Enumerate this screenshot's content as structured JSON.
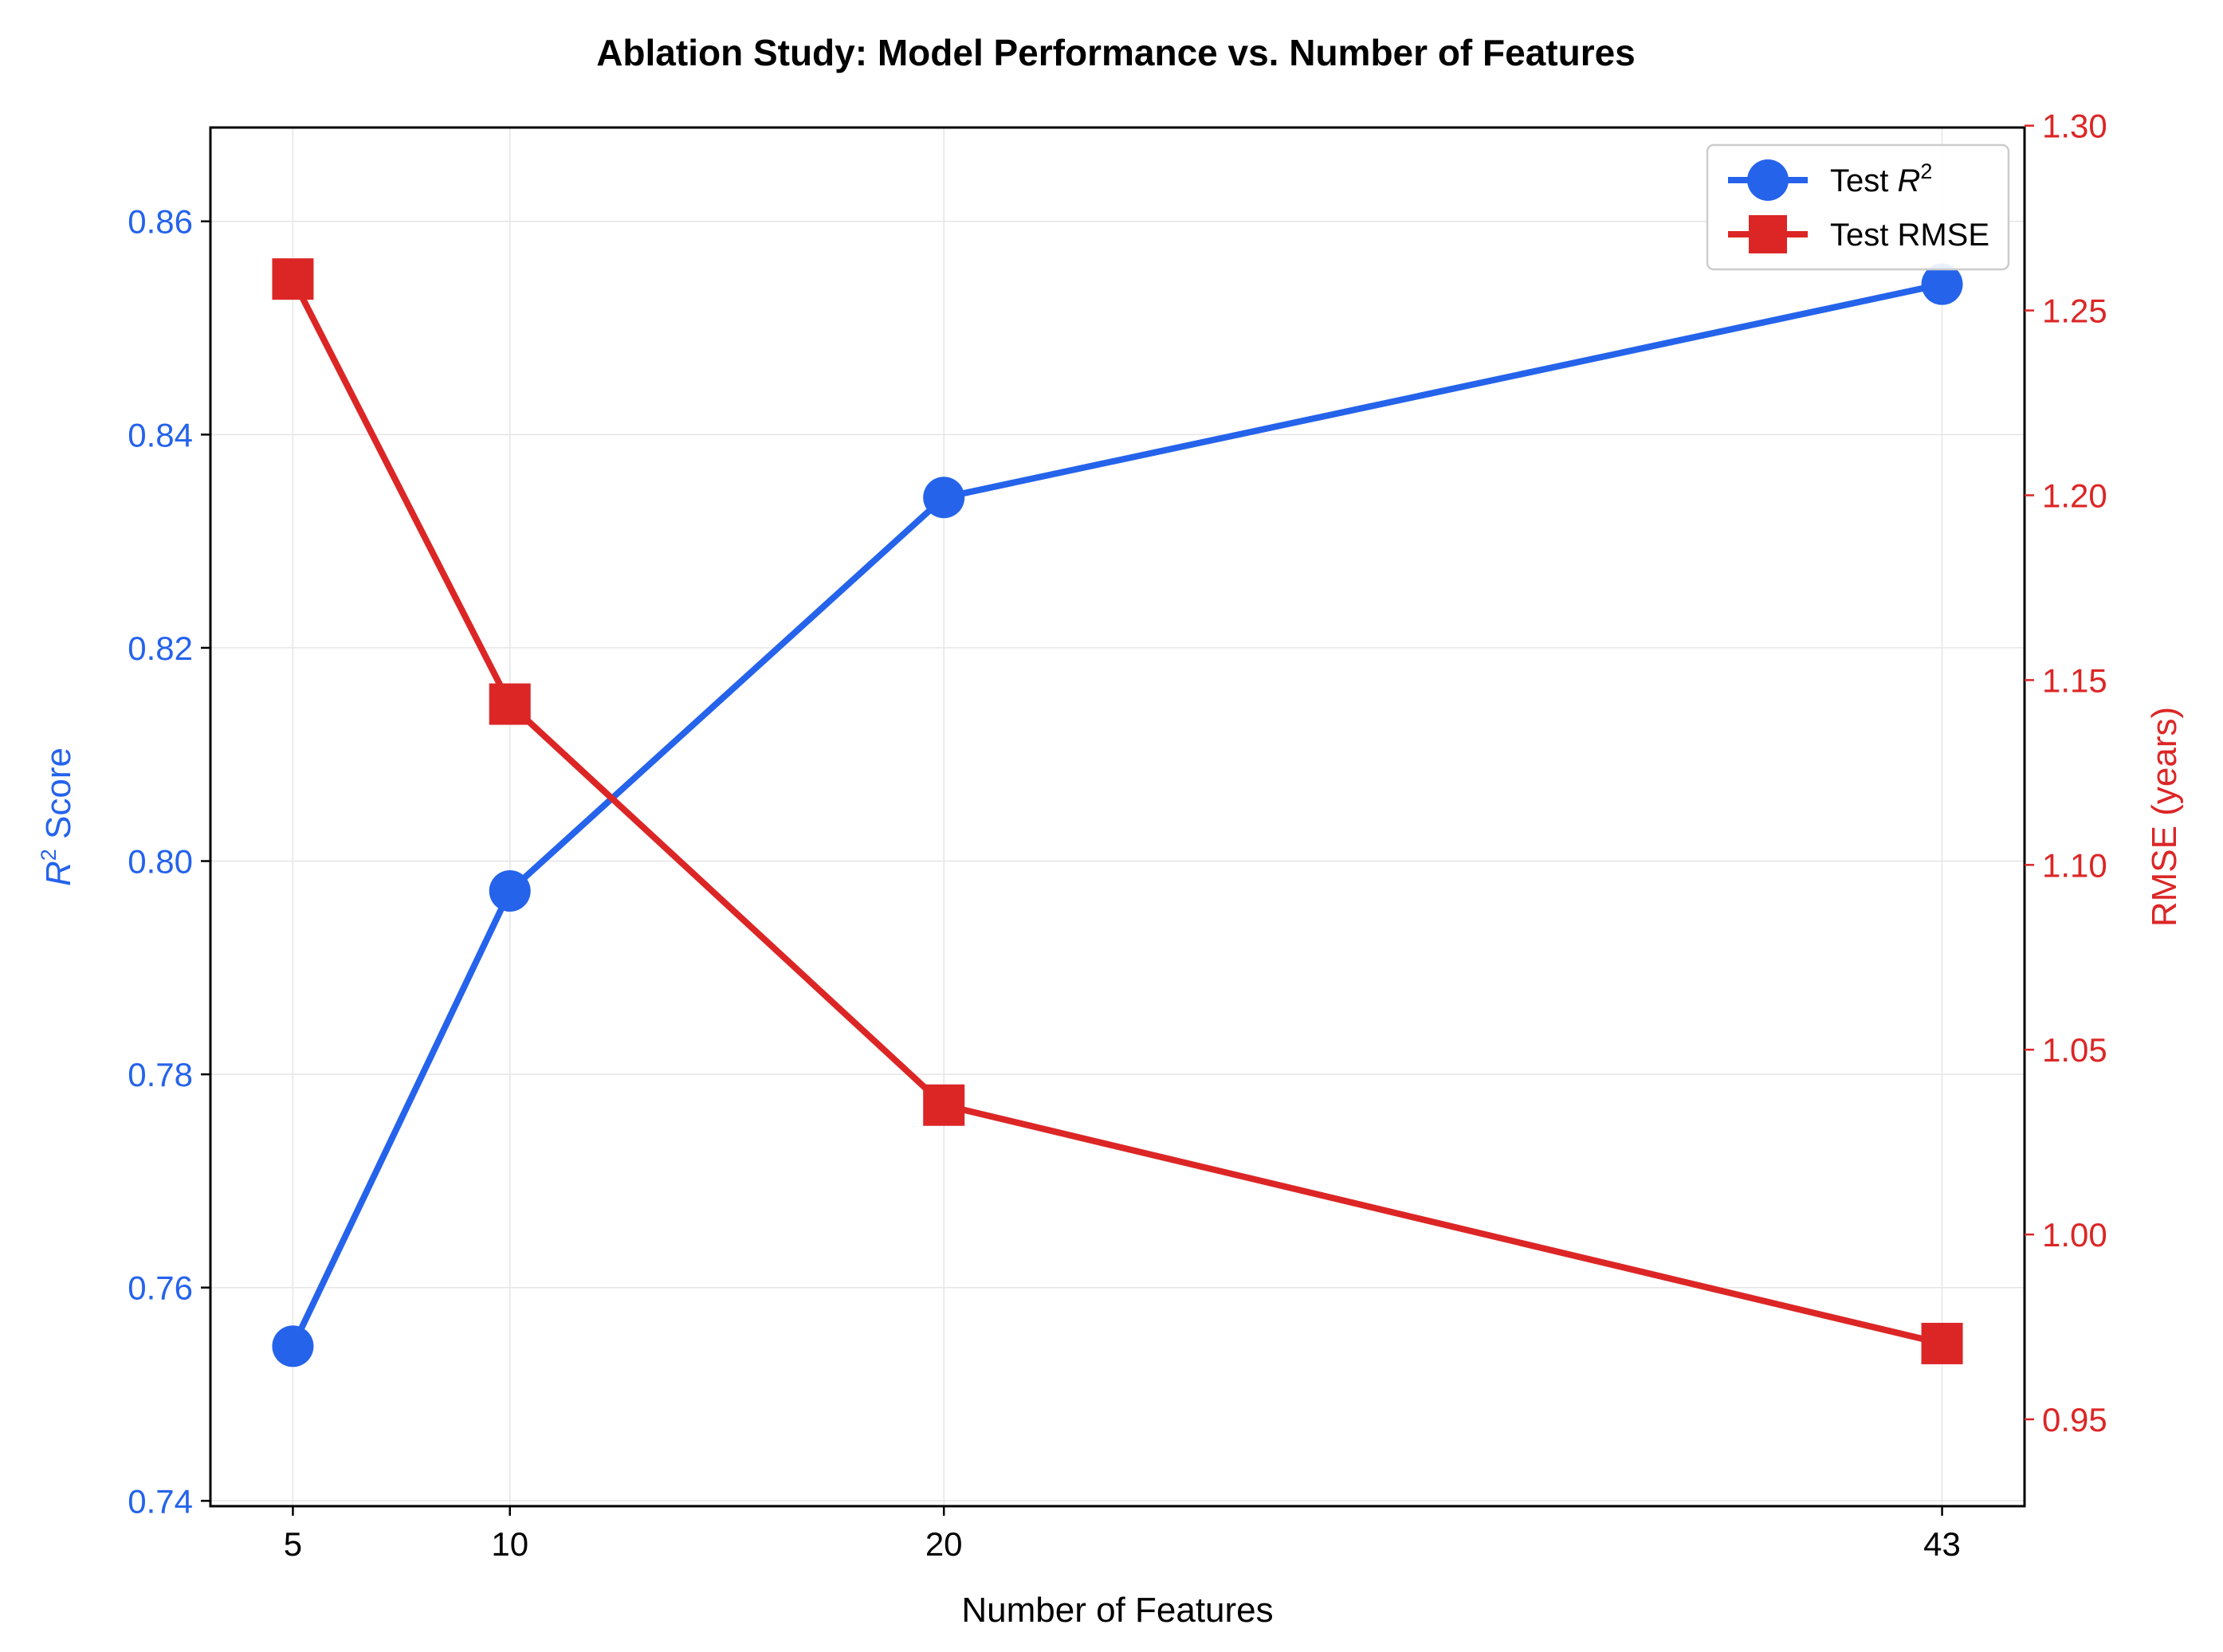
{
  "chart_data": {
    "type": "line",
    "title": "Ablation Study: Model Performance vs. Number of Features",
    "xlabel": "Number of Features",
    "x": [
      5,
      10,
      20,
      43
    ],
    "xticks": [
      "5",
      "10",
      "20",
      "43"
    ],
    "xlim": [
      3.1,
      44.9
    ],
    "grid": true,
    "legend_position": "top-right",
    "y_left": {
      "label_base": "R",
      "label_sup": "2",
      "label_suffix": " Score",
      "ylim": [
        0.7395,
        0.8688
      ],
      "ticks": [
        "0.74",
        "0.76",
        "0.78",
        "0.80",
        "0.82",
        "0.84",
        "0.86"
      ],
      "color": "#2563eb"
    },
    "y_right": {
      "label": "RMSE (years)",
      "ylim": [
        0.9265,
        1.2995
      ],
      "ticks": [
        "0.95",
        "1.00",
        "1.05",
        "1.10",
        "1.15",
        "1.20",
        "1.25",
        "1.30"
      ],
      "color": "#dc2626"
    },
    "series": [
      {
        "legend_base": "Test ",
        "legend_italic": "R",
        "legend_sup": "2",
        "axis": "left",
        "marker": "circle",
        "color": "#2563eb",
        "values": [
          0.7545,
          0.7972,
          0.8341,
          0.8541
        ]
      },
      {
        "name": "Test RMSE",
        "axis": "right",
        "marker": "square",
        "color": "#dc2626",
        "values": [
          1.2585,
          1.1435,
          1.035,
          0.9705
        ]
      }
    ]
  }
}
